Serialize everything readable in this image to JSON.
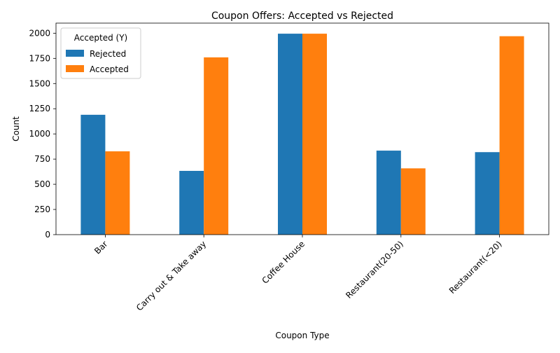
{
  "chart_data": {
    "type": "bar",
    "title": "Coupon Offers: Accepted vs Rejected",
    "xlabel": "Coupon Type",
    "ylabel": "Count",
    "categories": [
      "Bar",
      "Carry out & Take away",
      "Coffee House",
      "Restaurant(20-50)",
      "Restaurant(<20)"
    ],
    "series": [
      {
        "name": "Rejected",
        "values": [
          1190,
          633,
          1995,
          834,
          819
        ],
        "color": "#1f77b4"
      },
      {
        "name": "Accepted",
        "values": [
          827,
          1760,
          1995,
          658,
          1970
        ],
        "color": "#ff7f0e"
      }
    ],
    "ylim": [
      0,
      2100
    ],
    "yticks": [
      0,
      250,
      500,
      750,
      1000,
      1250,
      1500,
      1750,
      2000
    ],
    "legend": {
      "title": "Accepted (Y)",
      "placement": "top-left"
    },
    "grid": false,
    "xtick_rotation": 45
  }
}
